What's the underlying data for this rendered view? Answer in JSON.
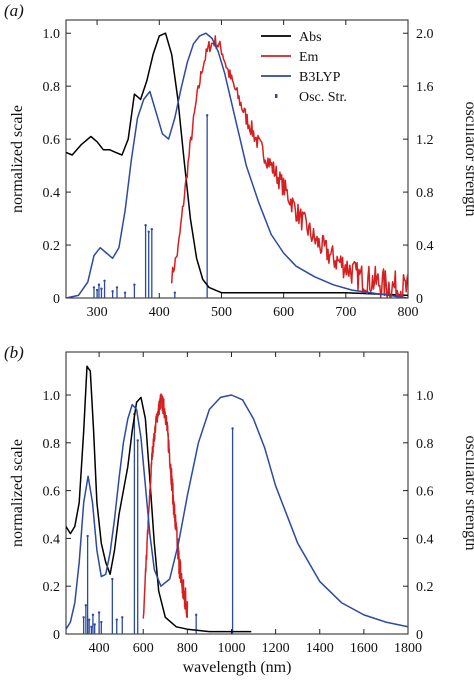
{
  "chart_data": [
    {
      "panel_label": "(a)",
      "type": "line",
      "xlabel": "",
      "ylabel": "normalized scale",
      "y2label": "oscillator strength",
      "xlim": [
        250,
        800
      ],
      "ylim": [
        0,
        1.05
      ],
      "y2lim": [
        0,
        2.1
      ],
      "xticks": [
        "300",
        "400",
        "500",
        "600",
        "700",
        "800"
      ],
      "yticks": [
        "0",
        "0.2",
        "0.4",
        "0.6",
        "0.8",
        "1.0"
      ],
      "y2ticks": [
        "0",
        "0.4",
        "0.8",
        "1.2",
        "1.6",
        "2.0"
      ],
      "legend": {
        "position": "top-right",
        "entries": [
          "Abs",
          "Em",
          "B3LYP",
          "Osc. Str."
        ]
      },
      "series": [
        {
          "name": "Abs",
          "color": "#000000",
          "x": [
            250,
            260,
            275,
            290,
            300,
            310,
            320,
            330,
            340,
            350,
            360,
            370,
            380,
            390,
            400,
            410,
            420,
            430,
            440,
            450,
            460,
            470,
            480,
            490,
            500,
            520,
            550,
            600,
            650,
            700,
            750,
            800
          ],
          "y": [
            0.55,
            0.54,
            0.58,
            0.61,
            0.59,
            0.56,
            0.56,
            0.55,
            0.54,
            0.6,
            0.77,
            0.75,
            0.82,
            0.92,
            0.99,
            1.0,
            0.92,
            0.75,
            0.52,
            0.3,
            0.15,
            0.07,
            0.04,
            0.03,
            0.02,
            0.02,
            0.02,
            0.02,
            0.02,
            0.02,
            0.015,
            0.01
          ]
        },
        {
          "name": "Em",
          "color": "#d42020",
          "x": [
            420,
            430,
            440,
            450,
            460,
            470,
            480,
            490,
            500,
            510,
            520,
            540,
            560,
            580,
            600,
            620,
            650,
            680,
            700,
            720,
            750,
            780,
            800
          ],
          "y": [
            0.08,
            0.18,
            0.38,
            0.58,
            0.75,
            0.88,
            0.95,
            0.97,
            0.94,
            0.86,
            0.8,
            0.68,
            0.58,
            0.5,
            0.42,
            0.33,
            0.22,
            0.15,
            0.12,
            0.08,
            0.06,
            0.04,
            0.03
          ],
          "noisy": true
        },
        {
          "name": "B3LYP",
          "color": "#2b4aa0",
          "x": [
            250,
            270,
            285,
            295,
            305,
            315,
            325,
            335,
            345,
            355,
            365,
            375,
            385,
            395,
            405,
            415,
            425,
            435,
            445,
            455,
            465,
            475,
            485,
            495,
            505,
            515,
            525,
            540,
            560,
            580,
            600,
            620,
            650,
            680,
            710,
            740,
            770,
            800
          ],
          "y": [
            0.0,
            0.01,
            0.06,
            0.16,
            0.19,
            0.17,
            0.15,
            0.19,
            0.33,
            0.52,
            0.68,
            0.75,
            0.78,
            0.7,
            0.62,
            0.6,
            0.68,
            0.79,
            0.89,
            0.96,
            0.99,
            1.0,
            0.98,
            0.93,
            0.85,
            0.75,
            0.65,
            0.5,
            0.36,
            0.24,
            0.17,
            0.12,
            0.08,
            0.05,
            0.03,
            0.02,
            0.01,
            0.0
          ]
        }
      ],
      "oscillator_strengths": {
        "name": "Osc. Str.",
        "color": "#2b4aa0",
        "x": [
          295,
          300,
          303,
          307,
          312,
          325,
          332,
          345,
          360,
          378,
          383,
          388,
          425,
          477
        ],
        "f": [
          0.08,
          0.06,
          0.1,
          0.07,
          0.13,
          0.05,
          0.08,
          0.04,
          0.1,
          0.55,
          0.5,
          0.52,
          0.04,
          1.38
        ]
      }
    },
    {
      "panel_label": "(b)",
      "type": "line",
      "xlabel": "wavelength (nm)",
      "ylabel": "normalized scale",
      "y2label": "oscillator strength",
      "xlim": [
        250,
        1800
      ],
      "ylim": [
        0,
        1.18
      ],
      "y2lim": [
        0,
        1.18
      ],
      "xticks": [
        "400",
        "600",
        "800",
        "1000",
        "1200",
        "1400",
        "1600",
        "1800"
      ],
      "yticks": [
        "0",
        "0.2",
        "0.4",
        "0.6",
        "0.8",
        "1.0"
      ],
      "y2ticks": [
        "0",
        "0.2",
        "0.4",
        "0.6",
        "0.8",
        "1.0"
      ],
      "series": [
        {
          "name": "Abs",
          "color": "#000000",
          "x": [
            250,
            270,
            290,
            310,
            330,
            345,
            360,
            375,
            390,
            410,
            430,
            450,
            470,
            490,
            510,
            530,
            550,
            570,
            590,
            610,
            630,
            650,
            670,
            700,
            750,
            800,
            900,
            1000,
            1090
          ],
          "y": [
            0.45,
            0.42,
            0.45,
            0.55,
            0.85,
            1.12,
            1.1,
            0.85,
            0.55,
            0.38,
            0.3,
            0.25,
            0.35,
            0.5,
            0.6,
            0.7,
            0.85,
            0.97,
            0.99,
            0.9,
            0.65,
            0.38,
            0.18,
            0.07,
            0.03,
            0.02,
            0.01,
            0.01,
            0.01
          ]
        },
        {
          "name": "Em",
          "color": "#d42020",
          "x": [
            600,
            620,
            640,
            660,
            680,
            700,
            720,
            740,
            760,
            780,
            800
          ],
          "y": [
            0.05,
            0.42,
            0.75,
            0.9,
            0.98,
            0.93,
            0.75,
            0.52,
            0.32,
            0.18,
            0.12
          ],
          "noisy": true
        },
        {
          "name": "B3LYP",
          "color": "#2b4aa0",
          "x": [
            250,
            270,
            290,
            310,
            330,
            350,
            370,
            390,
            410,
            430,
            450,
            470,
            490,
            510,
            530,
            550,
            570,
            590,
            610,
            630,
            650,
            680,
            720,
            760,
            800,
            850,
            900,
            950,
            1000,
            1050,
            1100,
            1150,
            1200,
            1300,
            1400,
            1500,
            1600,
            1700,
            1800
          ],
          "y": [
            0.02,
            0.05,
            0.13,
            0.3,
            0.55,
            0.66,
            0.55,
            0.35,
            0.24,
            0.25,
            0.34,
            0.48,
            0.65,
            0.8,
            0.9,
            0.96,
            0.94,
            0.82,
            0.62,
            0.42,
            0.27,
            0.2,
            0.23,
            0.38,
            0.58,
            0.8,
            0.94,
            0.99,
            1.0,
            0.98,
            0.9,
            0.78,
            0.62,
            0.38,
            0.22,
            0.13,
            0.08,
            0.05,
            0.03
          ]
        }
      ],
      "oscillator_strengths": {
        "name": "Osc. Str.",
        "color": "#2b4aa0",
        "x": [
          330,
          340,
          348,
          355,
          365,
          372,
          380,
          400,
          410,
          460,
          480,
          505,
          560,
          575,
          840,
          1005
        ],
        "f": [
          0.07,
          0.12,
          0.41,
          0.06,
          0.03,
          0.08,
          0.04,
          0.09,
          0.05,
          0.23,
          0.06,
          0.07,
          0.92,
          0.81,
          0.08,
          0.86
        ]
      }
    }
  ]
}
